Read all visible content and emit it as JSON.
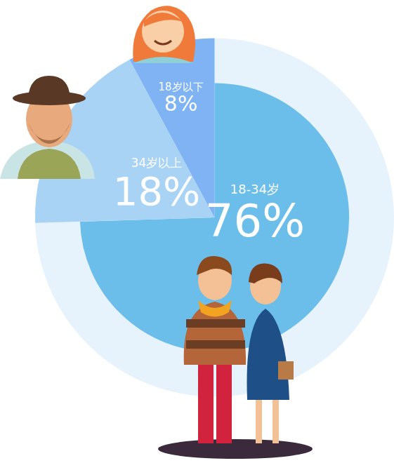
{
  "chart_data": {
    "type": "pie",
    "categories": [
      "18-34岁",
      "34岁以上",
      "18岁以下"
    ],
    "values": [
      76,
      18,
      8
    ],
    "value_labels": [
      "76%",
      "18%",
      "8%"
    ],
    "colors": [
      "#6bbdea",
      "#a9d3f5",
      "#7fb3f3"
    ],
    "data_labels": true
  }
}
